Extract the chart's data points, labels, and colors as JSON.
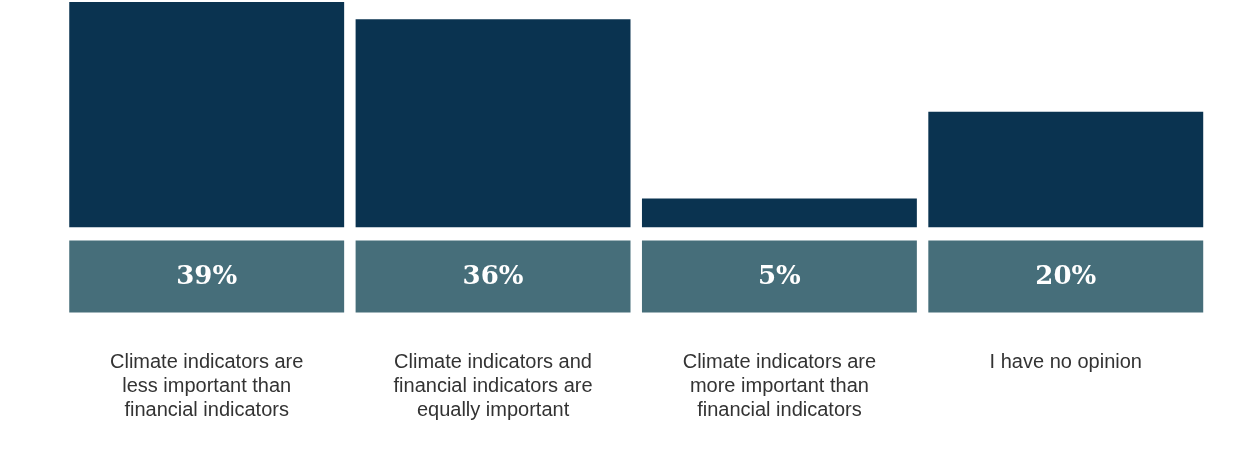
{
  "chart_data": {
    "type": "bar",
    "categories": [
      "Climate indicators are less important than financial indicators",
      "Climate indicators and financial indicators are equally important",
      "Climate indicators are more important than financial indicators",
      "I have no opinion"
    ],
    "values": [
      39,
      36,
      5,
      20
    ],
    "value_labels": [
      "39%",
      "36%",
      "5%",
      "20%"
    ],
    "color": "#0a3350"
  }
}
